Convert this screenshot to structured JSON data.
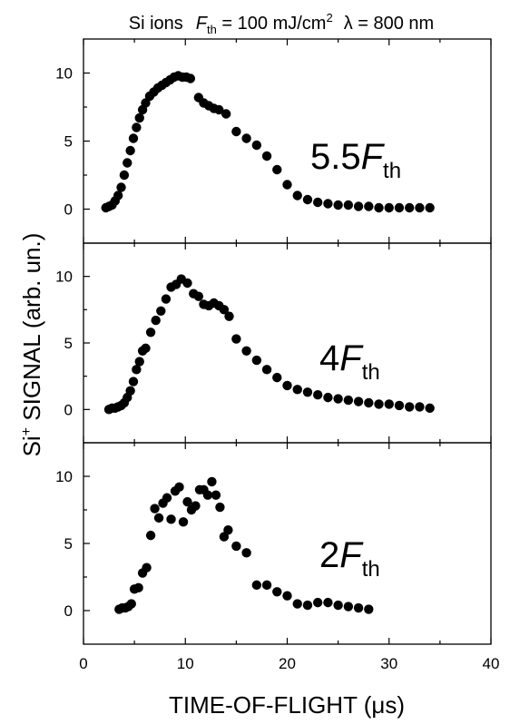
{
  "title": {
    "prefix": "Si ions",
    "fluence_symbol": "F",
    "fluence_sub": "th",
    "fluence_value": " = 100 mJ/cm",
    "fluence_sup": "2",
    "wavelength": "λ = 800 nm"
  },
  "axes": {
    "xlabel": "TIME-OF-FLIGHT (μs)",
    "ylabel_prefix": "Si",
    "ylabel_sup": "+",
    "ylabel_rest": " SIGNAL (arb. un.)"
  },
  "chart_data": {
    "type": "scatter",
    "x_range": [
      0,
      40
    ],
    "x_ticks": [
      0,
      10,
      20,
      30,
      40
    ],
    "y_range": [
      -2.5,
      12.5
    ],
    "y_ticks": [
      0,
      5,
      10
    ],
    "grid": false,
    "marker_color": "#000000",
    "panels": [
      {
        "annotation_number": "5.5",
        "annotation_symbol": "F",
        "annotation_sub": "th",
        "x": [
          2.2,
          2.5,
          2.8,
          3.1,
          3.4,
          3.7,
          4.0,
          4.3,
          4.6,
          4.9,
          5.2,
          5.5,
          5.8,
          6.1,
          6.5,
          6.9,
          7.3,
          7.7,
          8.1,
          8.5,
          8.9,
          9.3,
          9.7,
          10.1,
          10.5,
          11.3,
          11.8,
          12.3,
          12.8,
          13.3,
          14.0,
          15.0,
          16.0,
          17.0,
          18.0,
          19.0,
          20.0,
          21.0,
          22.0,
          23.0,
          24.0,
          25.0,
          26.0,
          27.0,
          28.0,
          29.0,
          30.0,
          31.0,
          32.0,
          33.0,
          34.0
        ],
        "y": [
          0.1,
          0.2,
          0.3,
          0.6,
          1.0,
          1.6,
          2.5,
          3.4,
          4.3,
          5.2,
          6.0,
          6.7,
          7.3,
          7.8,
          8.3,
          8.6,
          8.9,
          9.1,
          9.3,
          9.5,
          9.7,
          9.8,
          9.7,
          9.7,
          9.6,
          8.2,
          7.8,
          7.6,
          7.4,
          7.3,
          7.0,
          5.7,
          5.2,
          4.7,
          3.9,
          2.9,
          1.8,
          1.0,
          0.7,
          0.5,
          0.4,
          0.3,
          0.3,
          0.2,
          0.2,
          0.1,
          0.1,
          0.1,
          0.1,
          0.1,
          0.1
        ]
      },
      {
        "annotation_number": "4",
        "annotation_symbol": "F",
        "annotation_sub": "th",
        "x": [
          2.5,
          2.8,
          3.1,
          3.4,
          3.7,
          4.0,
          4.3,
          4.6,
          4.9,
          5.2,
          5.5,
          5.8,
          6.1,
          6.6,
          7.1,
          7.6,
          8.1,
          8.6,
          9.1,
          9.6,
          10.2,
          10.8,
          11.3,
          11.8,
          12.3,
          12.8,
          13.3,
          13.8,
          14.3,
          15.0,
          16.0,
          17.0,
          18.0,
          19.0,
          20.0,
          21.0,
          22.0,
          23.0,
          24.0,
          25.0,
          26.0,
          27.0,
          28.0,
          29.0,
          30.0,
          31.0,
          32.0,
          33.0,
          34.0
        ],
        "y": [
          0.0,
          0.1,
          0.1,
          0.2,
          0.3,
          0.5,
          0.9,
          1.4,
          2.1,
          3.0,
          3.6,
          4.4,
          4.6,
          5.8,
          6.7,
          7.4,
          8.3,
          9.2,
          9.4,
          9.8,
          9.5,
          8.7,
          8.5,
          7.9,
          7.8,
          8.0,
          7.8,
          7.5,
          7.0,
          5.3,
          4.4,
          3.7,
          3.0,
          2.4,
          1.8,
          1.5,
          1.3,
          1.1,
          0.9,
          0.8,
          0.7,
          0.6,
          0.5,
          0.4,
          0.4,
          0.3,
          0.2,
          0.2,
          0.1
        ]
      },
      {
        "annotation_number": "2",
        "annotation_symbol": "F",
        "annotation_sub": "th",
        "x": [
          3.5,
          3.8,
          4.1,
          4.4,
          4.7,
          5.0,
          5.4,
          5.8,
          6.2,
          6.6,
          7.0,
          7.4,
          7.8,
          8.2,
          8.6,
          9.0,
          9.4,
          9.8,
          10.2,
          10.6,
          11.0,
          11.4,
          11.8,
          12.2,
          12.6,
          13.0,
          13.4,
          13.8,
          14.2,
          15.0,
          16.0,
          17.0,
          18.0,
          19.0,
          20.0,
          21.0,
          22.0,
          23.0,
          24.0,
          25.0,
          26.0,
          27.0,
          28.0
        ],
        "y": [
          0.1,
          0.2,
          0.2,
          0.3,
          0.5,
          1.6,
          1.7,
          2.8,
          3.2,
          5.6,
          7.6,
          6.9,
          8.0,
          8.4,
          6.8,
          8.9,
          9.2,
          6.6,
          8.1,
          7.5,
          7.8,
          9.0,
          9.0,
          8.6,
          9.6,
          8.6,
          7.7,
          5.5,
          6.0,
          4.8,
          4.3,
          1.9,
          1.9,
          1.4,
          1.1,
          0.5,
          0.4,
          0.6,
          0.6,
          0.4,
          0.3,
          0.2,
          0.1
        ]
      }
    ]
  }
}
